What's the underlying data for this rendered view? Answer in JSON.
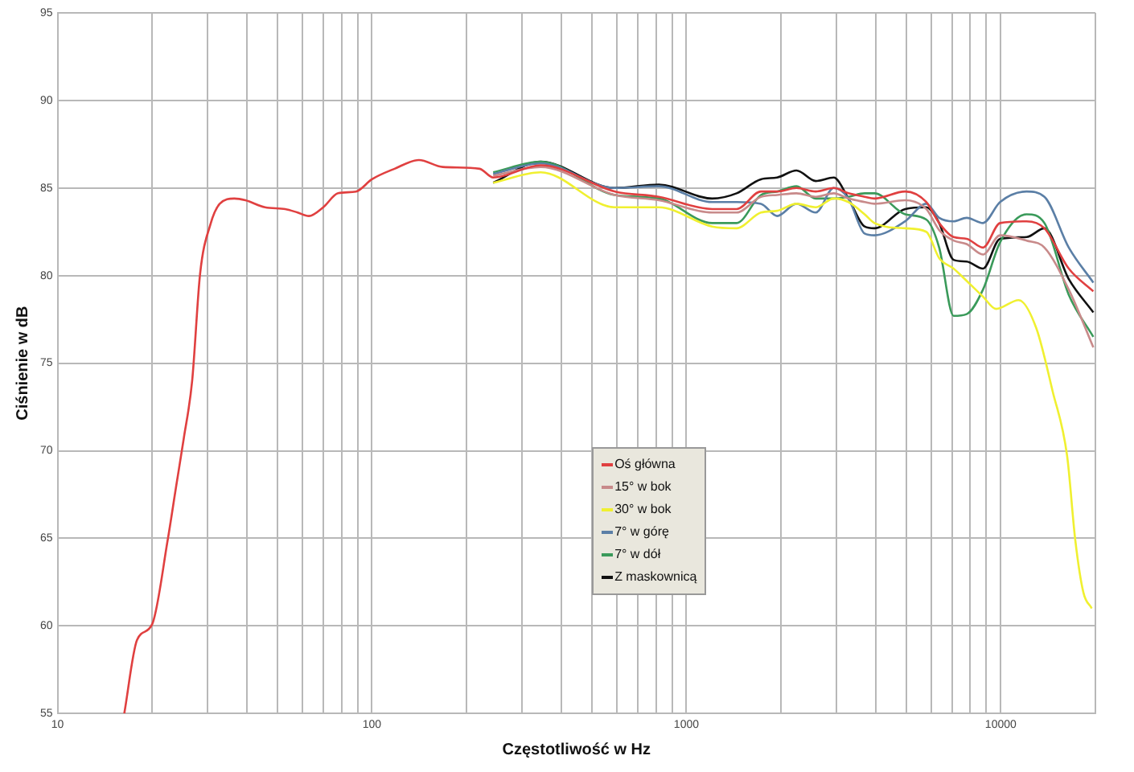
{
  "chart_data": {
    "type": "line",
    "xlabel": "Częstotliwość w Hz",
    "ylabel": "Ciśnienie w dB",
    "log": "x",
    "xlim": [
      10,
      20000
    ],
    "ylim": [
      55,
      95
    ],
    "xticks": [
      10,
      {
        "value": 20,
        "label": null
      },
      {
        "value": 30,
        "label": null
      },
      {
        "value": 40,
        "label": null
      },
      {
        "value": 50,
        "label": null
      },
      {
        "value": 60,
        "label": null
      },
      {
        "value": 70,
        "label": null
      },
      {
        "value": 80,
        "label": null
      },
      {
        "value": 90,
        "label": null
      },
      100,
      {
        "value": 200,
        "label": null
      },
      {
        "value": 300,
        "label": null
      },
      {
        "value": 400,
        "label": null
      },
      {
        "value": 500,
        "label": null
      },
      {
        "value": 600,
        "label": null
      },
      {
        "value": 700,
        "label": null
      },
      {
        "value": 800,
        "label": null
      },
      {
        "value": 900,
        "label": null
      },
      1000,
      {
        "value": 2000,
        "label": null
      },
      {
        "value": 3000,
        "label": null
      },
      {
        "value": 4000,
        "label": null
      },
      {
        "value": 5000,
        "label": null
      },
      {
        "value": 6000,
        "label": null
      },
      {
        "value": 7000,
        "label": null
      },
      {
        "value": 8000,
        "label": null
      },
      {
        "value": 9000,
        "label": null
      },
      10000,
      {
        "value": 20000,
        "label": null
      }
    ],
    "yticks": [
      55,
      60,
      65,
      70,
      75,
      80,
      85,
      90,
      95
    ],
    "grid": true,
    "legend": "bottom",
    "marker": "none",
    "line_style": "solid",
    "series": [
      {
        "name": "Oś główna",
        "color": "#e04040",
        "x": [
          16.3,
          17.9,
          20,
          22.4,
          23.8,
          25.2,
          26.8,
          28.4,
          30.6,
          32.8,
          36.5,
          39.6,
          45.7,
          53,
          58,
          63,
          70,
          78,
          89,
          100,
          118,
          141,
          168,
          220,
          243,
          344,
          593,
          817,
          1208,
          1445,
          1727,
          1944,
          2240,
          2580,
          2943,
          3277,
          3690,
          3963,
          4966,
          5795,
          6370,
          7080,
          7790,
          8780,
          9950,
          12080,
          13770,
          16460,
          19700
        ],
        "values": [
          55,
          59.2,
          60.1,
          64.9,
          67.9,
          70.7,
          74,
          80.1,
          82.9,
          84.1,
          84.4,
          84.3,
          83.9,
          83.8,
          83.6,
          83.4,
          83.9,
          84.7,
          84.8,
          85.5,
          86.1,
          86.6,
          86.2,
          86.1,
          85.6,
          86.3,
          84.8,
          84.5,
          83.8,
          83.8,
          84.8,
          84.8,
          85.0,
          84.8,
          85.0,
          84.7,
          84.5,
          84.4,
          84.8,
          84.2,
          83.0,
          82.2,
          82.1,
          81.6,
          83.0,
          83.1,
          82.7,
          80.4,
          79.1
        ]
      },
      {
        "name": "15° w bok",
        "color": "#c88a8a",
        "x": [
          243,
          344,
          593,
          817,
          1208,
          1445,
          1727,
          1944,
          2240,
          2580,
          2943,
          3277,
          3690,
          3963,
          4966,
          5795,
          6370,
          7080,
          7790,
          8780,
          9950,
          12080,
          13770,
          16460,
          19700
        ],
        "values": [
          85.7,
          86.2,
          84.6,
          84.3,
          83.6,
          83.6,
          84.5,
          84.6,
          84.7,
          84.5,
          84.7,
          84.4,
          84.2,
          84.1,
          84.3,
          83.8,
          82.6,
          82.0,
          81.8,
          81.2,
          82.3,
          82.0,
          81.6,
          79.2,
          75.9
        ]
      },
      {
        "name": "30° w bok",
        "color": "#f0f030",
        "x": [
          243,
          344,
          593,
          817,
          1208,
          1445,
          1727,
          1944,
          2240,
          2580,
          2943,
          3277,
          3690,
          3963,
          4966,
          5795,
          6370,
          7080,
          7790,
          8780,
          9660,
          11400,
          12970,
          14620,
          16260,
          17260,
          18320,
          19470
        ],
        "values": [
          85.3,
          85.9,
          83.9,
          83.9,
          82.8,
          82.7,
          83.6,
          83.7,
          84.1,
          83.9,
          84.4,
          84.2,
          83.5,
          83.0,
          82.7,
          82.5,
          81.0,
          80.4,
          79.7,
          78.8,
          78.1,
          78.6,
          77.0,
          73.4,
          69.7,
          64.9,
          61.9,
          61.0
        ]
      },
      {
        "name": "7° w górę",
        "color": "#5b7fa6",
        "x": [
          243,
          344,
          593,
          817,
          1208,
          1445,
          1727,
          1944,
          2240,
          2580,
          2943,
          3277,
          3690,
          3963,
          4966,
          5795,
          6370,
          7080,
          7790,
          8780,
          9950,
          12080,
          13770,
          16460,
          19700
        ],
        "values": [
          85.8,
          86.4,
          85.0,
          85.1,
          84.2,
          84.2,
          84.1,
          83.4,
          84.1,
          83.6,
          85.0,
          84.4,
          82.4,
          82.3,
          83.1,
          84.1,
          83.3,
          83.1,
          83.3,
          83.0,
          84.2,
          84.8,
          84.5,
          81.6,
          79.6
        ]
      },
      {
        "name": "7° w dół",
        "color": "#3a9a5a",
        "x": [
          243,
          344,
          593,
          817,
          1208,
          1445,
          1727,
          1944,
          2240,
          2580,
          2943,
          3277,
          3690,
          3963,
          4966,
          5795,
          6370,
          7080,
          7790,
          8780,
          9950,
          12080,
          13770,
          16460,
          19700
        ],
        "values": [
          85.9,
          86.5,
          84.6,
          84.4,
          83.0,
          83.0,
          84.6,
          84.8,
          85.1,
          84.4,
          84.4,
          84.5,
          84.7,
          84.7,
          83.5,
          83.2,
          81.6,
          77.7,
          77.8,
          79.2,
          81.9,
          83.5,
          83.0,
          78.9,
          76.5
        ]
      },
      {
        "name": "Z maskownicą",
        "color": "#111111",
        "x": [
          243,
          344,
          593,
          817,
          1208,
          1445,
          1727,
          1944,
          2240,
          2580,
          2943,
          3277,
          3690,
          3963,
          4966,
          5795,
          6370,
          7080,
          7790,
          8780,
          9950,
          12080,
          13770,
          16460,
          19700
        ],
        "values": [
          85.3,
          86.5,
          85.0,
          85.2,
          84.4,
          84.7,
          85.5,
          85.6,
          86.0,
          85.4,
          85.6,
          84.4,
          82.8,
          82.7,
          83.8,
          83.9,
          83.0,
          80.9,
          80.8,
          80.4,
          82.1,
          82.2,
          82.7,
          79.8,
          77.9
        ]
      }
    ]
  }
}
